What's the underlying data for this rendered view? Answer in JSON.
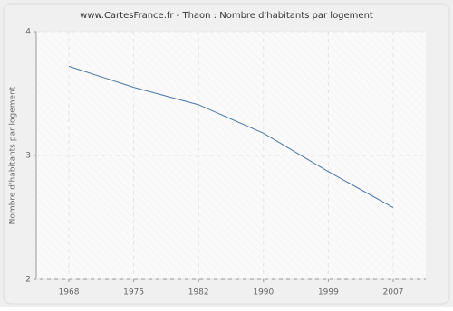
{
  "chart_data": {
    "type": "line",
    "title": "www.CartesFrance.fr - Thaon : Nombre d'habitants par logement",
    "y_label": "Nombre d'habitants par logement",
    "categories": [
      "1968",
      "1975",
      "1982",
      "1990",
      "1999",
      "2007"
    ],
    "series": [
      {
        "color": "#4a76a8",
        "values": [
          3.72,
          3.55,
          3.41,
          3.18,
          2.87,
          2.58
        ]
      }
    ],
    "ylim": [
      2,
      4
    ],
    "yticks": [
      2,
      3,
      4
    ],
    "grid": true
  }
}
